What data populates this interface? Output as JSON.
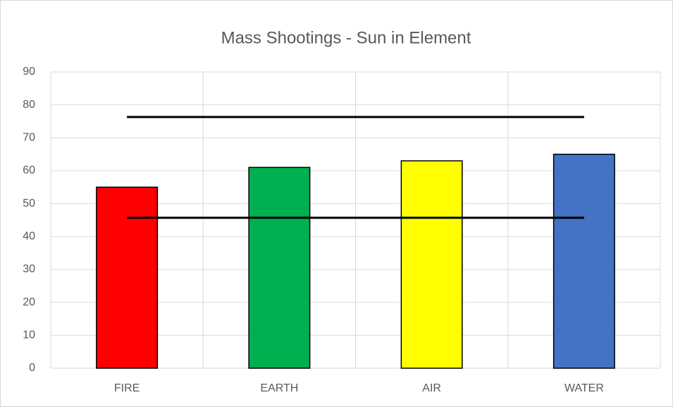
{
  "chart_data": {
    "type": "bar",
    "title": "Mass Shootings - Sun in Element",
    "categories": [
      "FIRE",
      "EARTH",
      "AIR",
      "WATER"
    ],
    "values": [
      55,
      61,
      63,
      65
    ],
    "colors": [
      "#ff0000",
      "#00b050",
      "#ffff00",
      "#4472c4"
    ],
    "lines": [
      {
        "color": "#000000",
        "values": [
          76.3,
          76.3,
          76.3,
          76.3
        ]
      },
      {
        "color": "#000000",
        "values": [
          45.7,
          45.7,
          45.7,
          45.7
        ]
      }
    ],
    "ylim": [
      0,
      90
    ],
    "yticks": [
      0,
      10,
      20,
      30,
      40,
      50,
      60,
      70,
      80,
      90
    ],
    "grid": true
  }
}
